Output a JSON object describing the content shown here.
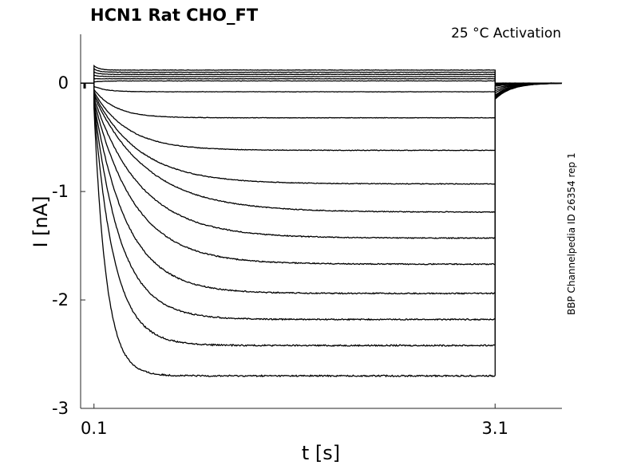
{
  "chart_data": {
    "type": "line",
    "title": "HCN1  Rat  CHO_FT",
    "annotation": "25 °C  Activation",
    "side_label": "BBP Channelpedia ID 26354 rep 1",
    "xlabel": "t [s]",
    "ylabel": "I [nA]",
    "xlim": [
      0.0,
      3.6
    ],
    "ylim": [
      -3.0,
      0.45
    ],
    "x_ticks": [
      0.1,
      3.1
    ],
    "x_tick_labels": [
      "0.1",
      "3.1"
    ],
    "y_ticks": [
      0,
      -1,
      -2,
      -3
    ],
    "y_tick_labels": [
      "0",
      "-1",
      "-2",
      "-3"
    ],
    "pulse_start": 0.1,
    "pulse_end": 3.1,
    "grid": false,
    "line_color": "#000000",
    "series_steady_state_nA": [
      0.12,
      0.1,
      0.08,
      0.06,
      0.04,
      0.02,
      -0.08,
      -0.32,
      -0.62,
      -0.93,
      -1.19,
      -1.43,
      -1.67,
      -1.94,
      -2.18,
      -2.42,
      -2.7
    ],
    "series_onset_nA": [
      0.16,
      0.13,
      0.1,
      0.07,
      0.04,
      0.01,
      -0.03,
      -0.06,
      -0.08,
      -0.1,
      -0.12,
      -0.14,
      -0.16,
      -0.18,
      -0.2,
      -0.22,
      -0.24
    ],
    "series_tail_nA": [
      0.0,
      0.0,
      0.0,
      0.0,
      0.0,
      0.0,
      -0.01,
      -0.02,
      -0.03,
      -0.05,
      -0.07,
      -0.09,
      -0.11,
      -0.12,
      -0.13,
      -0.14,
      -0.15
    ]
  }
}
